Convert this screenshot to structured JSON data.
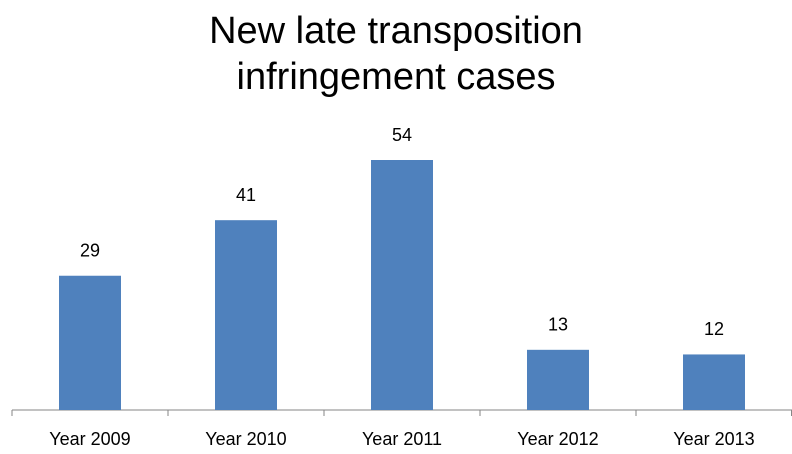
{
  "chart_data": {
    "type": "bar",
    "title": "New late transposition infringement cases",
    "categories": [
      "Year 2009",
      "Year 2010",
      "Year 2011",
      "Year 2012",
      "Year 2013"
    ],
    "values": [
      29,
      41,
      54,
      13,
      12
    ],
    "color": "#4f81bd"
  }
}
